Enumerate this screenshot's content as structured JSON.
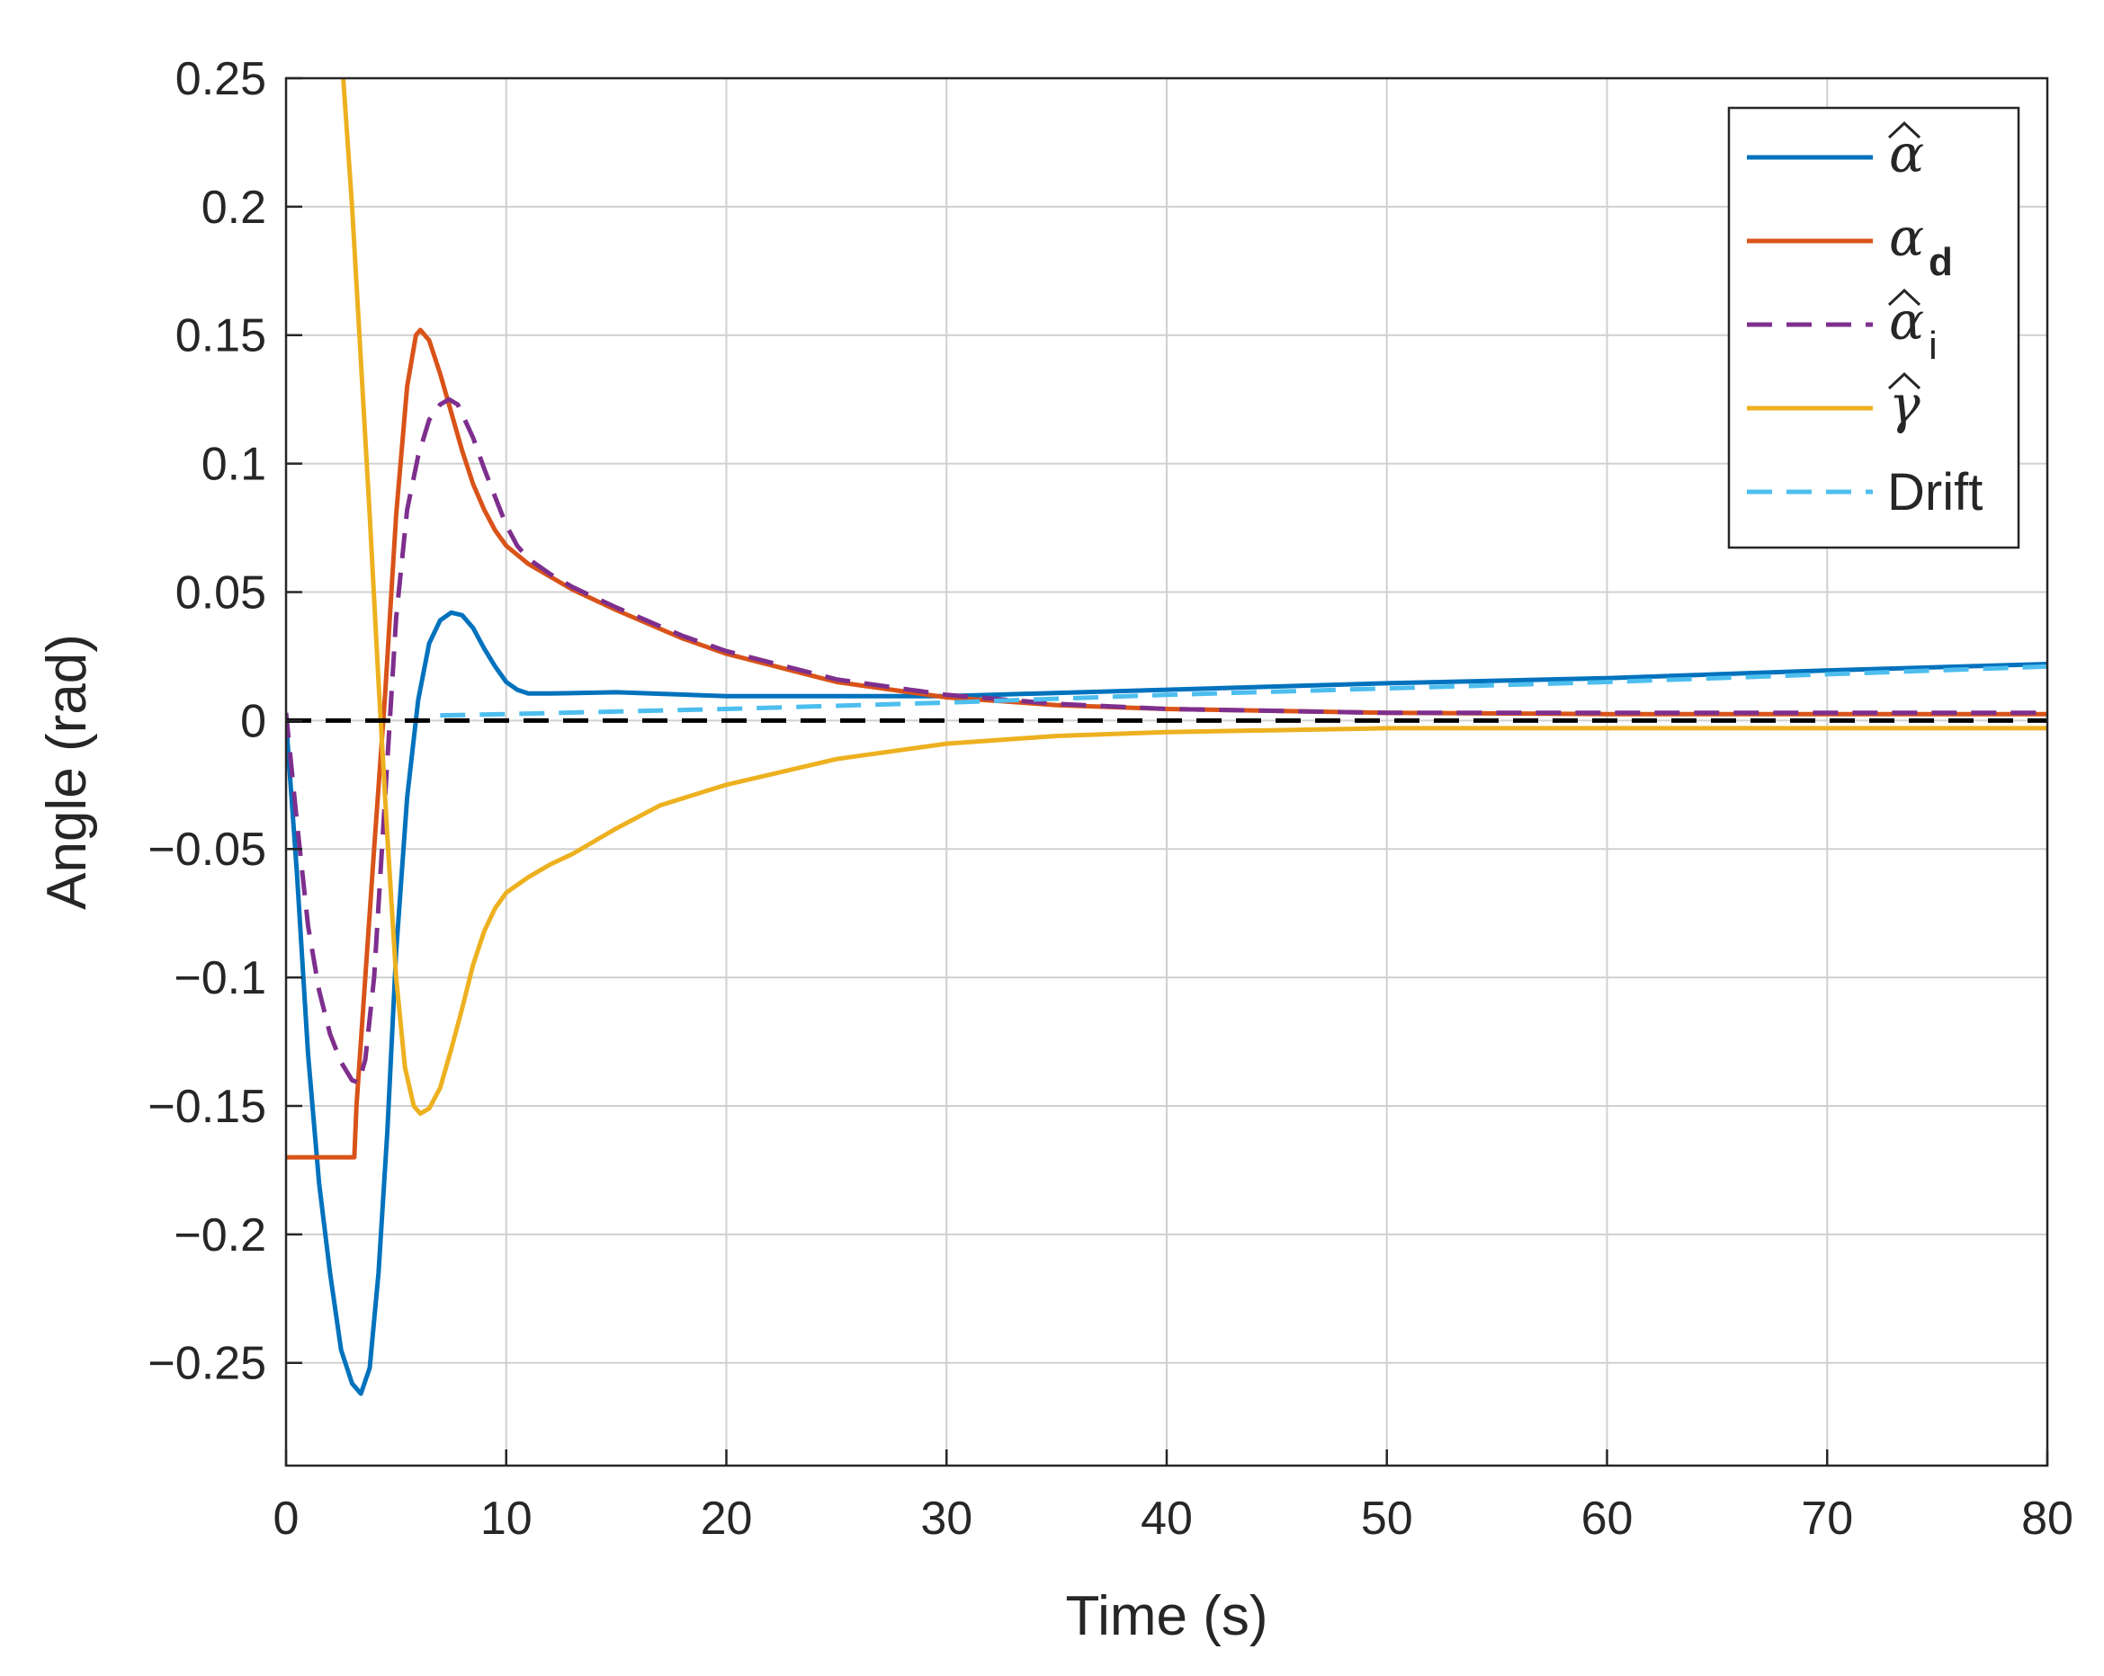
{
  "chart_data": {
    "type": "line",
    "xlabel": "Time (s)",
    "ylabel": "Angle (rad)",
    "xlim": [
      0,
      80
    ],
    "ylim": [
      -0.29,
      0.25
    ],
    "grid": true,
    "legend_position": "top-right",
    "x_ticks": [
      0,
      10,
      20,
      30,
      40,
      50,
      60,
      70,
      80
    ],
    "x_tick_labels": [
      "0",
      "10",
      "20",
      "30",
      "40",
      "50",
      "60",
      "70",
      "80"
    ],
    "y_ticks": [
      -0.25,
      -0.2,
      -0.15,
      -0.1,
      -0.05,
      0,
      0.05,
      0.1,
      0.15,
      0.2,
      0.25
    ],
    "y_tick_labels": [
      "−0.25",
      "−0.2",
      "−0.15",
      "−0.1",
      "−0.05",
      "0",
      "0.05",
      "0.1",
      "0.15",
      "0.2",
      "0.25"
    ],
    "series": [
      {
        "name": "alpha-hat",
        "legend_symbol": "α",
        "legend_hat": true,
        "legend_sub": "",
        "color": "#0072BD",
        "dash": false,
        "points": [
          [
            0,
            0
          ],
          [
            0.5,
            -0.06
          ],
          [
            1,
            -0.13
          ],
          [
            1.5,
            -0.18
          ],
          [
            2,
            -0.215
          ],
          [
            2.5,
            -0.245
          ],
          [
            3,
            -0.258
          ],
          [
            3.4,
            -0.262
          ],
          [
            3.8,
            -0.252
          ],
          [
            4.2,
            -0.215
          ],
          [
            4.6,
            -0.16
          ],
          [
            5,
            -0.09
          ],
          [
            5.5,
            -0.03
          ],
          [
            6,
            0.008
          ],
          [
            6.5,
            0.03
          ],
          [
            7,
            0.039
          ],
          [
            7.5,
            0.042
          ],
          [
            8,
            0.041
          ],
          [
            8.5,
            0.036
          ],
          [
            9,
            0.028
          ],
          [
            9.5,
            0.021
          ],
          [
            10,
            0.015
          ],
          [
            10.5,
            0.012
          ],
          [
            11,
            0.0105
          ],
          [
            12,
            0.0105
          ],
          [
            15,
            0.011
          ],
          [
            20,
            0.0095
          ],
          [
            25,
            0.0095
          ],
          [
            30,
            0.0095
          ],
          [
            40,
            0.012
          ],
          [
            50,
            0.0145
          ],
          [
            60,
            0.0165
          ],
          [
            70,
            0.0195
          ],
          [
            80,
            0.022
          ]
        ]
      },
      {
        "name": "alpha-d",
        "legend_symbol": "α",
        "legend_hat": false,
        "legend_sub": "d",
        "color": "#D95319",
        "dash": false,
        "points": [
          [
            0,
            -0.17
          ],
          [
            3.1,
            -0.17
          ],
          [
            3.2,
            -0.15
          ],
          [
            3.6,
            -0.1
          ],
          [
            4,
            -0.05
          ],
          [
            4.5,
            0.01
          ],
          [
            5,
            0.08
          ],
          [
            5.5,
            0.13
          ],
          [
            5.9,
            0.15
          ],
          [
            6.1,
            0.152
          ],
          [
            6.5,
            0.148
          ],
          [
            7,
            0.135
          ],
          [
            7.5,
            0.12
          ],
          [
            8,
            0.105
          ],
          [
            8.5,
            0.092
          ],
          [
            9,
            0.082
          ],
          [
            9.5,
            0.074
          ],
          [
            10,
            0.068
          ],
          [
            11,
            0.061
          ],
          [
            12,
            0.056
          ],
          [
            13,
            0.051
          ],
          [
            15,
            0.043
          ],
          [
            18,
            0.032
          ],
          [
            20,
            0.026
          ],
          [
            25,
            0.015
          ],
          [
            30,
            0.009
          ],
          [
            35,
            0.006
          ],
          [
            40,
            0.0045
          ],
          [
            50,
            0.003
          ],
          [
            60,
            0.0025
          ],
          [
            70,
            0.0025
          ],
          [
            80,
            0.0025
          ]
        ]
      },
      {
        "name": "alpha-hat-i",
        "legend_symbol": "α",
        "legend_hat": true,
        "legend_sub": "i",
        "color": "#7E2F8E",
        "dash": true,
        "points": [
          [
            0,
            0.003
          ],
          [
            0.5,
            -0.04
          ],
          [
            1,
            -0.08
          ],
          [
            1.5,
            -0.105
          ],
          [
            2,
            -0.122
          ],
          [
            2.5,
            -0.133
          ],
          [
            3,
            -0.14
          ],
          [
            3.3,
            -0.141
          ],
          [
            3.6,
            -0.132
          ],
          [
            4,
            -0.1
          ],
          [
            4.5,
            -0.03
          ],
          [
            5,
            0.04
          ],
          [
            5.5,
            0.082
          ],
          [
            6,
            0.103
          ],
          [
            6.5,
            0.117
          ],
          [
            7,
            0.123
          ],
          [
            7.4,
            0.125
          ],
          [
            7.8,
            0.123
          ],
          [
            8.5,
            0.11
          ],
          [
            9,
            0.098
          ],
          [
            9.5,
            0.087
          ],
          [
            10,
            0.076
          ],
          [
            10.5,
            0.068
          ],
          [
            11,
            0.063
          ],
          [
            12,
            0.057
          ],
          [
            13,
            0.052
          ],
          [
            15,
            0.044
          ],
          [
            18,
            0.033
          ],
          [
            20,
            0.027
          ],
          [
            25,
            0.016
          ],
          [
            30,
            0.01
          ],
          [
            35,
            0.0065
          ],
          [
            40,
            0.0045
          ],
          [
            50,
            0.003
          ],
          [
            60,
            0.003
          ],
          [
            70,
            0.003
          ],
          [
            80,
            0.003
          ]
        ]
      },
      {
        "name": "gamma-hat",
        "legend_symbol": "γ",
        "legend_hat": true,
        "legend_sub": "",
        "color": "#EDB120",
        "dash": false,
        "points": [
          [
            2.6,
            0.25
          ],
          [
            3.0,
            0.2
          ],
          [
            3.4,
            0.14
          ],
          [
            3.8,
            0.08
          ],
          [
            4.2,
            0.015
          ],
          [
            4.6,
            -0.045
          ],
          [
            5,
            -0.1
          ],
          [
            5.4,
            -0.135
          ],
          [
            5.8,
            -0.15
          ],
          [
            6.1,
            -0.153
          ],
          [
            6.5,
            -0.151
          ],
          [
            7,
            -0.143
          ],
          [
            7.5,
            -0.128
          ],
          [
            8,
            -0.112
          ],
          [
            8.5,
            -0.095
          ],
          [
            9,
            -0.082
          ],
          [
            9.5,
            -0.073
          ],
          [
            10,
            -0.067
          ],
          [
            11,
            -0.061
          ],
          [
            12,
            -0.056
          ],
          [
            13,
            -0.052
          ],
          [
            15,
            -0.042
          ],
          [
            17,
            -0.033
          ],
          [
            20,
            -0.025
          ],
          [
            25,
            -0.015
          ],
          [
            30,
            -0.009
          ],
          [
            35,
            -0.006
          ],
          [
            40,
            -0.0045
          ],
          [
            50,
            -0.003
          ],
          [
            60,
            -0.003
          ],
          [
            70,
            -0.003
          ],
          [
            80,
            -0.003
          ]
        ]
      },
      {
        "name": "drift",
        "legend_symbol": "",
        "legend_hat": false,
        "legend_sub": "",
        "legend_text": "Drift",
        "color": "#4DBEEE",
        "dash": true,
        "points": [
          [
            7,
            0.002
          ],
          [
            10,
            0.0025
          ],
          [
            20,
            0.0045
          ],
          [
            30,
            0.007
          ],
          [
            40,
            0.01
          ],
          [
            50,
            0.0125
          ],
          [
            60,
            0.015
          ],
          [
            70,
            0.018
          ],
          [
            80,
            0.021
          ]
        ]
      }
    ],
    "reference_lines": [
      {
        "name": "zero-reference",
        "y": 0,
        "color": "#000000",
        "dash": true
      }
    ]
  }
}
